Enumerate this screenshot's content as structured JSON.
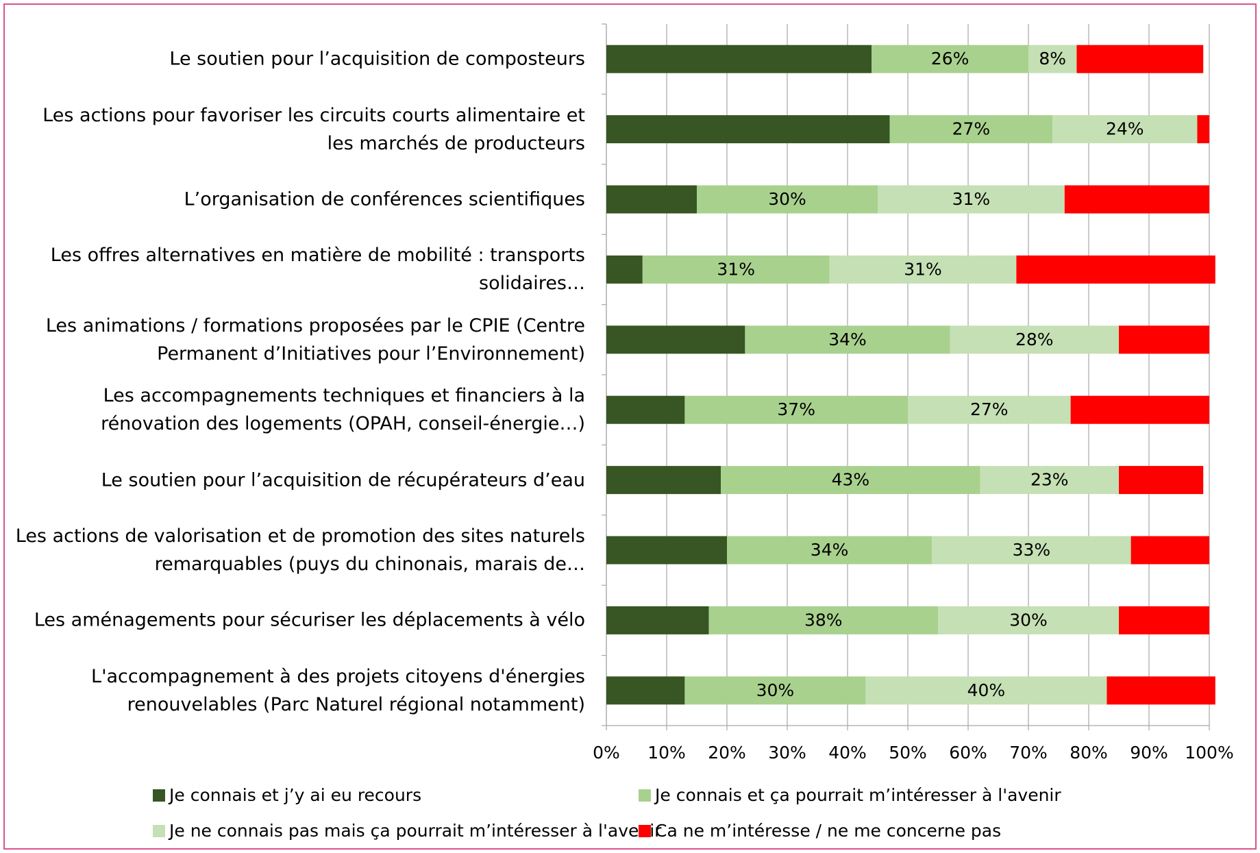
{
  "chart_data": {
    "type": "stacked_barh",
    "categories": [
      "Le soutien pour l’acquisition de composteurs",
      "Les actions pour favoriser les circuits courts alimentaire et les marchés de producteurs",
      "L’organisation de conférences scientifiques",
      "Les offres alternatives en matière de mobilité : transports solidaires…",
      "Les animations / formations proposées par le CPIE (Centre Permanent d’Initiatives pour l’Environnement)",
      "Les accompagnements techniques et financiers à la rénovation des logements (OPAH, conseil-énergie…)",
      "Le soutien pour l’acquisition de récupérateurs d’eau",
      "Les actions de valorisation et de promotion des sites naturels remarquables (puys du chinonais, marais de…",
      "Les aménagements pour sécuriser les déplacements à vélo",
      "L'accompagnement à des projets citoyens d'énergies renouvelables (Parc Naturel régional notamment)"
    ],
    "series": [
      {
        "name": "Je connais et j’y ai eu recours",
        "color": "#375623",
        "values": [
          44,
          47,
          15,
          6,
          23,
          13,
          19,
          20,
          17,
          13
        ]
      },
      {
        "name": "Je connais et ça pourrait m’intéresser à l'avenir",
        "color": "#a9d18e",
        "values": [
          26,
          27,
          30,
          31,
          34,
          37,
          43,
          34,
          38,
          30
        ],
        "value_labels": [
          "26%",
          "27%",
          "30%",
          "31%",
          "34%",
          "37%",
          "43%",
          "34%",
          "38%",
          "30%"
        ]
      },
      {
        "name": "Je ne connais pas mais ça pourrait m’intéresser à l'avenir",
        "color": "#c5e0b4",
        "values": [
          8,
          24,
          31,
          31,
          28,
          27,
          23,
          33,
          30,
          40
        ],
        "value_labels": [
          "8%",
          "24%",
          "31%",
          "31%",
          "28%",
          "27%",
          "23%",
          "33%",
          "30%",
          "40%"
        ]
      },
      {
        "name": "Ca ne m’intéresse / ne me concerne pas",
        "color": "#ff0000",
        "values": [
          21,
          2,
          24,
          33,
          15,
          23,
          14,
          13,
          15,
          18
        ]
      }
    ],
    "xlim": [
      0,
      100
    ],
    "xticks": [
      {
        "value": 0,
        "label": "0%"
      },
      {
        "value": 10,
        "label": "10%"
      },
      {
        "value": 20,
        "label": "20%"
      },
      {
        "value": 30,
        "label": "30%"
      },
      {
        "value": 40,
        "label": "40%"
      },
      {
        "value": 50,
        "label": "50%"
      },
      {
        "value": 60,
        "label": "60%"
      },
      {
        "value": 70,
        "label": "70%"
      },
      {
        "value": 80,
        "label": "80%"
      },
      {
        "value": 90,
        "label": "90%"
      },
      {
        "value": 100,
        "label": "100%"
      }
    ],
    "grid": true
  }
}
